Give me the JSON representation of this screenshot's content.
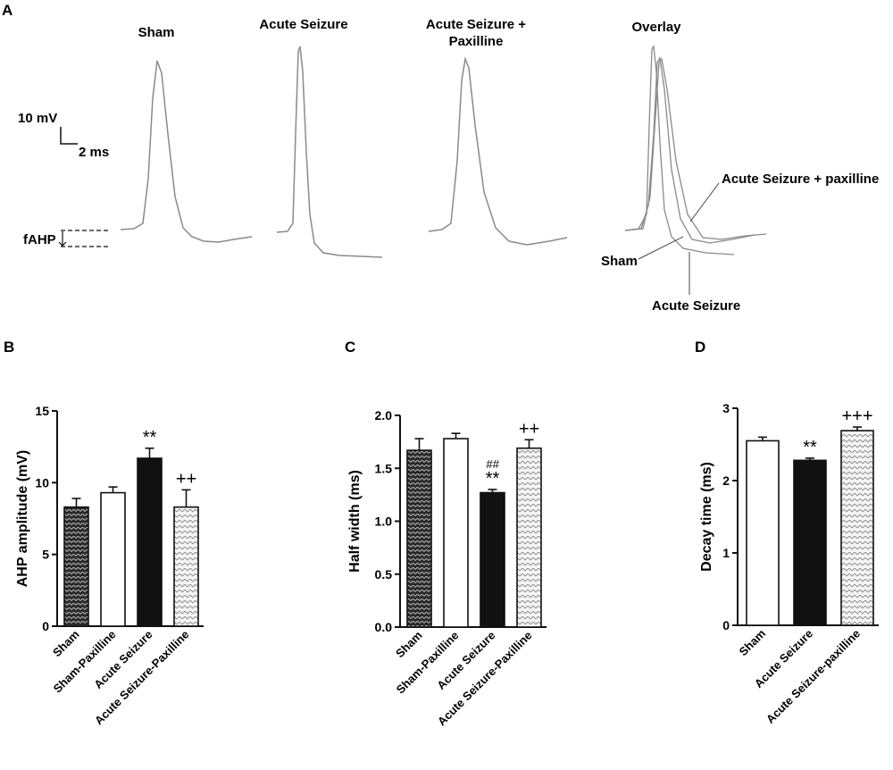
{
  "panel_a": {
    "letter": "A",
    "titles": [
      "Sham",
      "Acute Seizure",
      "Acute Seizure +",
      "Paxilline",
      "Overlay"
    ],
    "scale_v": "10 mV",
    "scale_t": "2 ms",
    "fahp_label": "fAHP",
    "overlay_labels": [
      "Acute Seizure + paxilline",
      "Sham",
      "Acute Seizure"
    ]
  },
  "colors": {
    "trace": "#8a8a8a",
    "black_bar": "#111111",
    "white_bar": "#ffffff",
    "axis": "#111111"
  },
  "chart_data": [
    {
      "panel": "B",
      "type": "bar",
      "ylabel": "AHP amplitude (mV)",
      "ylim": [
        0,
        15
      ],
      "yticks": [
        0,
        5,
        10,
        15
      ],
      "categories": [
        "Sham",
        "Sham-Paxilline",
        "Acute Seizure",
        "Acute Seizure-Paxilline"
      ],
      "values": [
        8.3,
        9.3,
        11.7,
        8.3
      ],
      "errors": [
        0.6,
        0.4,
        0.7,
        1.2
      ],
      "fills": [
        "dense-pattern",
        "white",
        "black",
        "light-pattern"
      ],
      "annotations": [
        "",
        "",
        "**",
        "++"
      ],
      "annotations_small": [
        "",
        "",
        "",
        ""
      ]
    },
    {
      "panel": "C",
      "type": "bar",
      "ylabel": "Half width (ms)",
      "ylim": [
        0,
        2.0
      ],
      "yticks": [
        0.0,
        0.5,
        1.0,
        1.5,
        2.0
      ],
      "categories": [
        "Sham",
        "Sham-Paxilline",
        "Acute Seizure",
        "Acute Seizure-Paxilline"
      ],
      "values": [
        1.67,
        1.78,
        1.27,
        1.69
      ],
      "errors": [
        0.11,
        0.05,
        0.03,
        0.08
      ],
      "fills": [
        "dense-pattern",
        "white",
        "black",
        "light-pattern"
      ],
      "annotations": [
        "",
        "",
        "**",
        "++"
      ],
      "annotations_small": [
        "",
        "",
        "##",
        ""
      ]
    },
    {
      "panel": "D",
      "type": "bar",
      "ylabel": "Decay time (ms)",
      "ylim": [
        0,
        3
      ],
      "yticks": [
        0,
        1,
        2,
        3
      ],
      "categories": [
        "Sham",
        "Acute Seizure",
        "Acute Seizure-paxilline"
      ],
      "values": [
        2.55,
        2.28,
        2.69
      ],
      "errors": [
        0.05,
        0.03,
        0.05
      ],
      "fills": [
        "white",
        "black",
        "light-pattern"
      ],
      "annotations": [
        "",
        "**",
        "+++"
      ],
      "annotations_small": [
        "",
        "",
        ""
      ]
    }
  ]
}
